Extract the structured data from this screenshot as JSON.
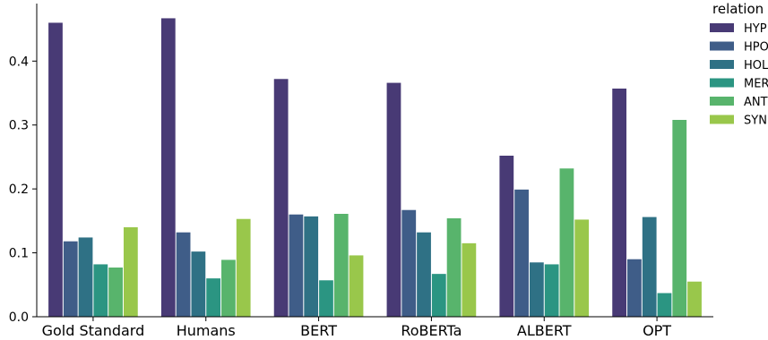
{
  "chart_data": {
    "type": "bar",
    "categories": [
      "Gold Standard",
      "Humans",
      "BERT",
      "RoBERTa",
      "ALBERT",
      "OPT"
    ],
    "series": [
      {
        "name": "HYP",
        "color": "#483a75",
        "values": [
          0.46,
          0.467,
          0.372,
          0.366,
          0.252,
          0.357
        ]
      },
      {
        "name": "HPO",
        "color": "#3f5d88",
        "values": [
          0.118,
          0.132,
          0.16,
          0.167,
          0.199,
          0.09
        ]
      },
      {
        "name": "HOL",
        "color": "#2f7185",
        "values": [
          0.124,
          0.102,
          0.157,
          0.132,
          0.085,
          0.156
        ]
      },
      {
        "name": "MER",
        "color": "#2b9582",
        "values": [
          0.082,
          0.06,
          0.057,
          0.067,
          0.082,
          0.037
        ]
      },
      {
        "name": "ANT",
        "color": "#58b46c",
        "values": [
          0.077,
          0.089,
          0.161,
          0.154,
          0.232,
          0.308
        ]
      },
      {
        "name": "SYN",
        "color": "#99c74b",
        "values": [
          0.14,
          0.153,
          0.096,
          0.115,
          0.152,
          0.055
        ]
      }
    ],
    "yticks": [
      "0.0",
      "0.1",
      "0.2",
      "0.3",
      "0.4"
    ],
    "ylim": [
      0,
      0.49
    ],
    "legend_title": "relation",
    "legend_position": "top-right"
  }
}
